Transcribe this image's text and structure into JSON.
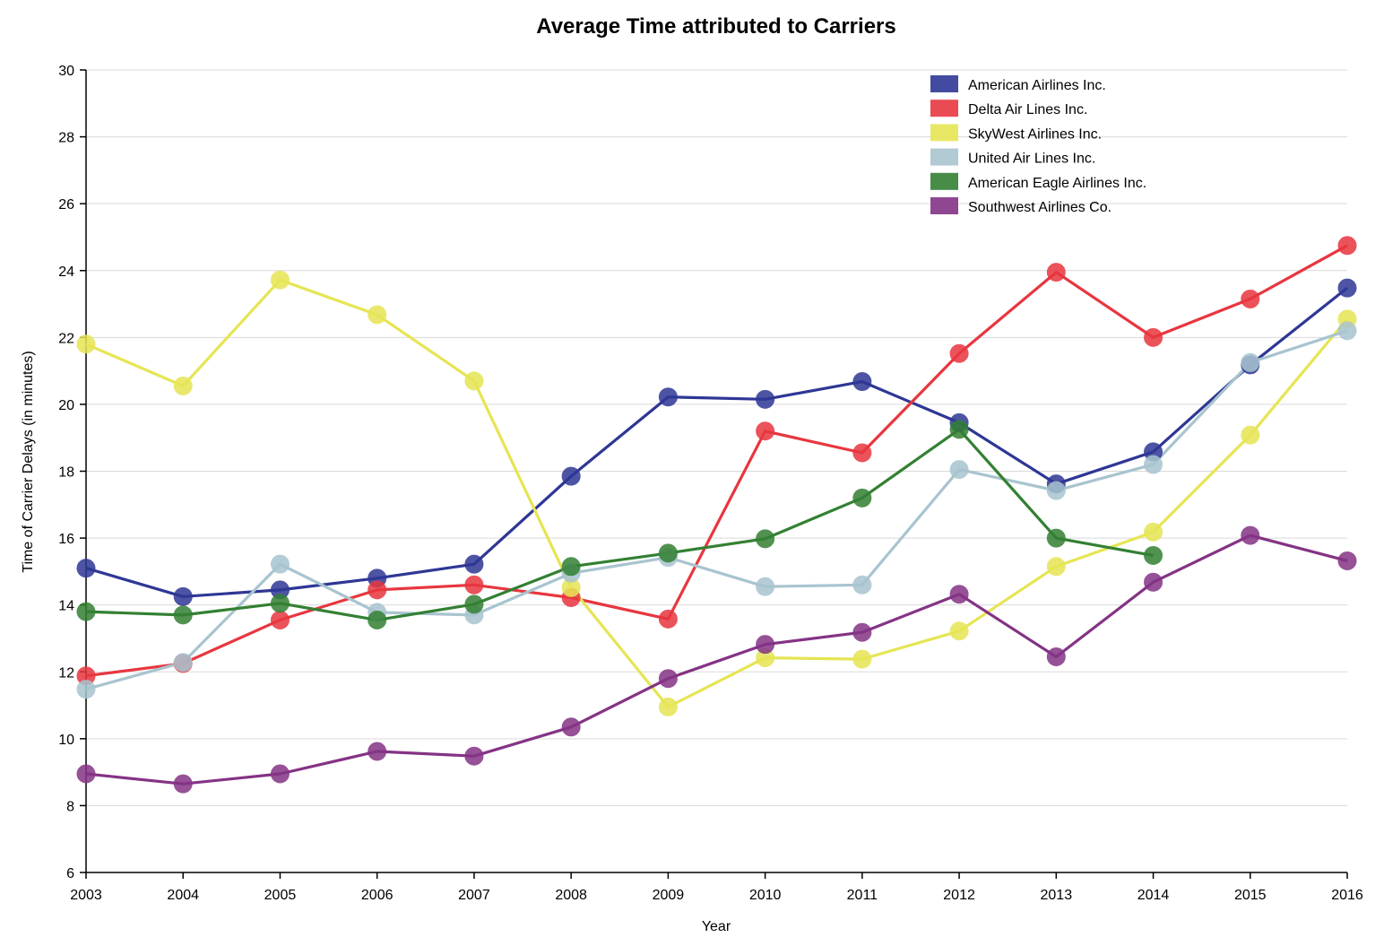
{
  "chart_data": {
    "type": "line",
    "title": "Average Time attributed to Carriers",
    "xlabel": "Year",
    "ylabel": "Time of Carrier Delays (in minutes)",
    "x": [
      2003,
      2004,
      2005,
      2006,
      2007,
      2008,
      2009,
      2010,
      2011,
      2012,
      2013,
      2014,
      2015,
      2016
    ],
    "ylim": [
      6,
      30
    ],
    "yticks": [
      6,
      8,
      10,
      12,
      14,
      16,
      18,
      20,
      22,
      24,
      26,
      28,
      30
    ],
    "grid": true,
    "legend_position": "top-right",
    "series": [
      {
        "name": "American Airlines Inc.",
        "color": "#2e3795",
        "values": [
          15.1,
          14.25,
          14.45,
          14.8,
          15.22,
          17.85,
          20.22,
          20.15,
          20.68,
          19.45,
          17.62,
          18.58,
          21.18,
          23.48
        ]
      },
      {
        "name": "Delta Air Lines Inc.",
        "color": "#e8363f",
        "values": [
          11.88,
          12.25,
          13.55,
          14.45,
          14.6,
          14.22,
          13.58,
          19.2,
          18.55,
          21.52,
          23.95,
          22.0,
          23.15,
          24.75
        ]
      },
      {
        "name": "SkyWest Airlines Inc.",
        "color": "#e6e554",
        "values": [
          21.8,
          20.55,
          23.72,
          22.68,
          20.7,
          14.52,
          10.95,
          12.42,
          12.38,
          13.22,
          15.15,
          16.18,
          19.08,
          22.55
        ]
      },
      {
        "name": "United Air Lines Inc.",
        "color": "#a8c4cf",
        "values": [
          11.48,
          12.28,
          15.22,
          13.78,
          13.7,
          14.95,
          15.42,
          14.55,
          14.6,
          18.05,
          17.42,
          18.2,
          21.25,
          22.2
        ]
      },
      {
        "name": "American Eagle Airlines Inc.",
        "color": "#338033",
        "values": [
          13.8,
          13.7,
          14.05,
          13.55,
          14.02,
          15.15,
          15.55,
          15.98,
          17.2,
          19.25,
          16.0,
          15.48,
          null,
          null
        ]
      },
      {
        "name": "Southwest Airlines Co.",
        "color": "#843385",
        "values": [
          8.95,
          8.65,
          8.95,
          9.62,
          9.48,
          10.35,
          11.8,
          12.82,
          13.18,
          14.32,
          12.45,
          14.68,
          16.08,
          15.32
        ]
      }
    ]
  }
}
